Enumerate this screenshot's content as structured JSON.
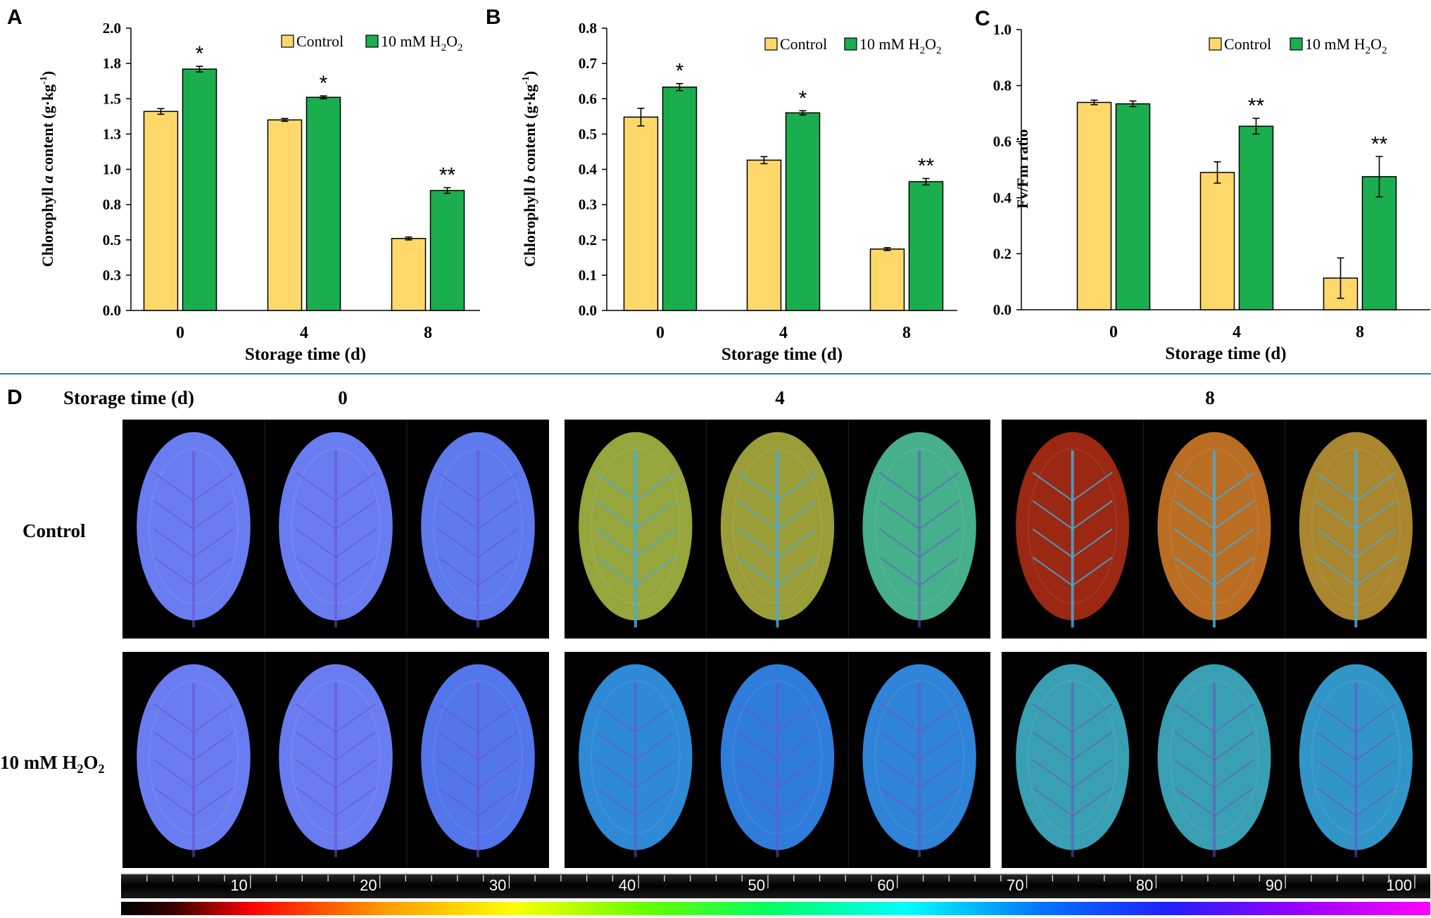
{
  "colors": {
    "control": "#FFD86B",
    "treatment": "#1BAE4E",
    "divider": "#2E75B6",
    "bar_stroke": "#000000"
  },
  "chart_data": [
    {
      "panel": "A",
      "type": "bar",
      "title": "",
      "xlabel": "Storage time (d)",
      "ylabel_parts": [
        "Chlorophyll ",
        "a",
        " content (g·kg",
        "-1",
        ")"
      ],
      "categories": [
        "0",
        "4",
        "8"
      ],
      "yticks": [
        "0.0",
        "0.3",
        "0.5",
        "0.8",
        "1.0",
        "1.3",
        "1.5",
        "1.8",
        "2.0"
      ],
      "ylim": [
        0,
        2.0
      ],
      "grid": false,
      "legend_position": "top-right",
      "series": [
        {
          "name": "Control",
          "legend_parts": [
            "Control"
          ],
          "values": [
            1.41,
            1.35,
            0.51
          ],
          "errors": [
            0.02,
            0.01,
            0.01
          ],
          "sig": [
            "",
            "",
            ""
          ]
        },
        {
          "name": "10 mM H2O2",
          "legend_parts": [
            "10 mM  H",
            "2",
            "O",
            "2"
          ],
          "values": [
            1.71,
            1.51,
            0.85
          ],
          "errors": [
            0.02,
            0.01,
            0.02
          ],
          "sig": [
            "*",
            "*",
            "**"
          ]
        }
      ]
    },
    {
      "panel": "B",
      "type": "bar",
      "title": "",
      "xlabel": "Storage time (d)",
      "ylabel_parts": [
        "Chlorophyll  ",
        "b",
        " content  (g·kg",
        "-1",
        ")"
      ],
      "categories": [
        "0",
        "4",
        "8"
      ],
      "yticks": [
        "0.0",
        "0.1",
        "0.2",
        "0.3",
        "0.4",
        "0.5",
        "0.6",
        "0.7",
        "0.8"
      ],
      "ylim": [
        0,
        0.8
      ],
      "grid": false,
      "legend_position": "top-right",
      "series": [
        {
          "name": "Control",
          "legend_parts": [
            "Control"
          ],
          "values": [
            0.548,
            0.426,
            0.174
          ],
          "errors": [
            0.025,
            0.01,
            0.004
          ],
          "sig": [
            "",
            "",
            ""
          ]
        },
        {
          "name": "10 mM H2O2",
          "legend_parts": [
            "10 mM  H",
            "2",
            "O",
            "2"
          ],
          "values": [
            0.633,
            0.56,
            0.365
          ],
          "errors": [
            0.01,
            0.006,
            0.009
          ],
          "sig": [
            "*",
            "*",
            "**"
          ]
        }
      ]
    },
    {
      "panel": "C",
      "type": "bar",
      "title": "",
      "xlabel": "Storage time (d)",
      "ylabel_parts": [
        "Fv/Fm ratio"
      ],
      "categories": [
        "0",
        "4",
        "8"
      ],
      "yticks": [
        "0.0",
        "0.2",
        "0.4",
        "0.6",
        "0.8",
        "1.0"
      ],
      "ylim": [
        0,
        1.0
      ],
      "grid": false,
      "legend_position": "top-right",
      "series": [
        {
          "name": "Control",
          "legend_parts": [
            "Control"
          ],
          "values": [
            0.74,
            0.49,
            0.113
          ],
          "errors": [
            0.008,
            0.038,
            0.072
          ],
          "sig": [
            "",
            "",
            ""
          ]
        },
        {
          "name": "10 mM H2O2",
          "legend_parts": [
            "10 mM  H",
            "2",
            "O",
            "2"
          ],
          "values": [
            0.735,
            0.655,
            0.475
          ],
          "errors": [
            0.01,
            0.028,
            0.072
          ],
          "sig": [
            "",
            "**",
            "**"
          ]
        }
      ]
    }
  ],
  "panel_d": {
    "letter": "D",
    "storage_label": "Storage time (d)",
    "days": [
      "0",
      "4",
      "8"
    ],
    "row_labels": [
      {
        "parts": [
          "Control"
        ]
      },
      {
        "parts": [
          "10 mM H",
          "2",
          "O",
          "2"
        ]
      }
    ],
    "leaf_levels": [
      [
        [
          0.88,
          0.88,
          0.86
        ],
        [
          0.42,
          0.4,
          0.55
        ],
        [
          0.14,
          0.28,
          0.34
        ]
      ],
      [
        [
          0.88,
          0.88,
          0.84
        ],
        [
          0.7,
          0.74,
          0.72
        ],
        [
          0.62,
          0.62,
          0.66
        ]
      ]
    ],
    "colorbar_ticks": [
      "10",
      "20",
      "30",
      "40",
      "50",
      "60",
      "70",
      "80",
      "90",
      "100"
    ],
    "colorbar_range": [
      0,
      100
    ]
  }
}
